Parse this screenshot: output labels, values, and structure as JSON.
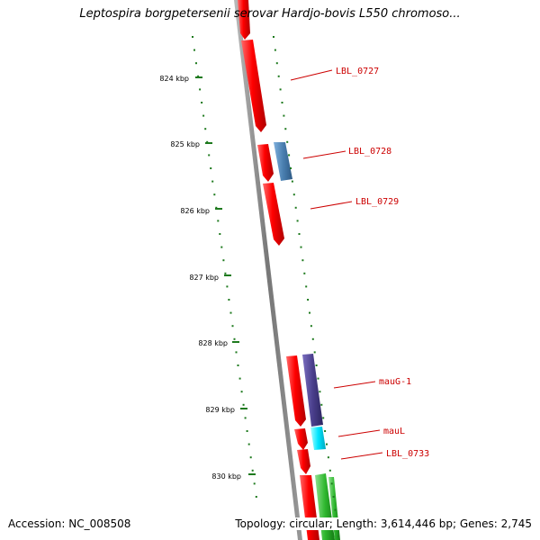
{
  "title": "Leptospira borgpetersenii serovar Hardjo-bovis L550 chromoso...",
  "accession_text": "Accession: NC_008508",
  "summary_text": "Topology: circular; Length: 3,614,446 bp; Genes: 2,745",
  "kbp_labels": [
    "824 kbp",
    "825 kbp",
    "826 kbp",
    "827 kbp",
    "828 kbp",
    "829 kbp",
    "830 kbp"
  ],
  "gene_labels": [
    "LBL_0727",
    "LBL_0728",
    "LBL_0729",
    "mauG-1",
    "mauL",
    "LBL_0733"
  ],
  "colors": {
    "backbone": "#888888",
    "ticks": "#1e7a1e",
    "gene_red": "#ff0000",
    "gene_blue": "#4a7fb0",
    "gene_purple": "#4a3f8c",
    "gene_cyan": "#00e5ff",
    "gene_green": "#2fb82f",
    "label_line": "#cc0000"
  }
}
